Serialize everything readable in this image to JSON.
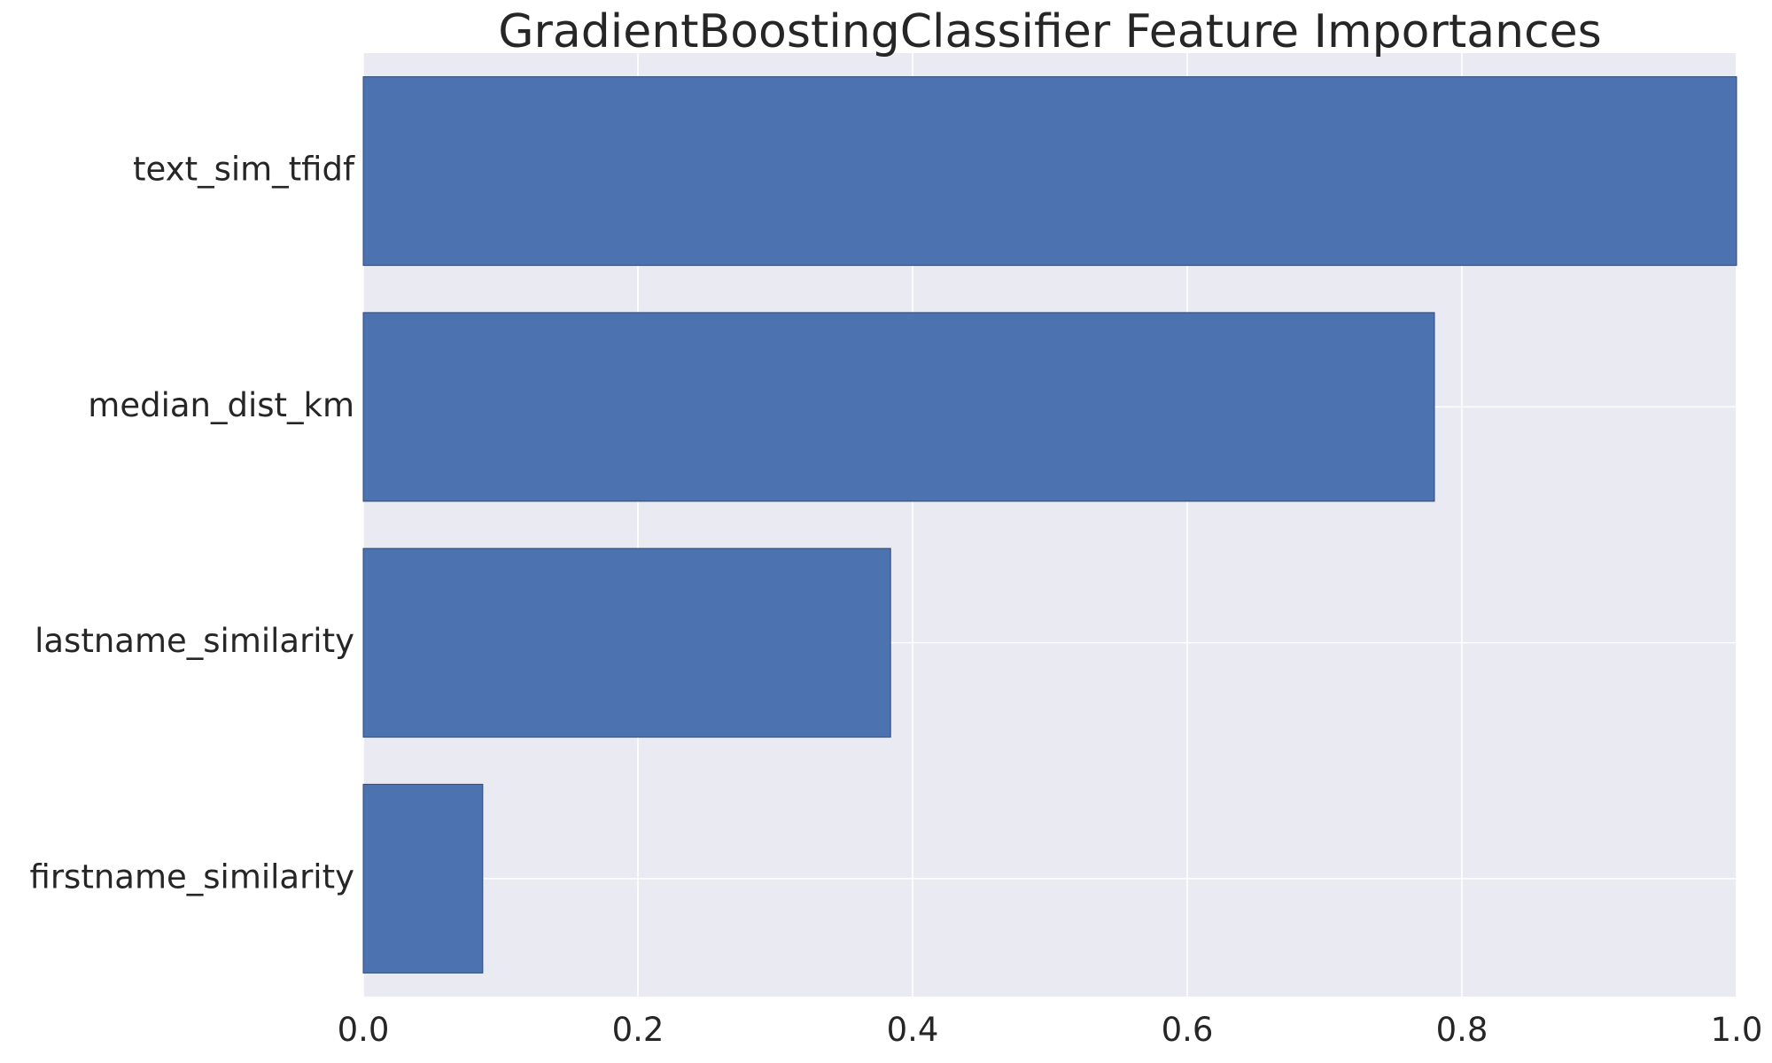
{
  "chart_data": {
    "type": "bar",
    "orientation": "horizontal",
    "title": "GradientBoostingClassifier Feature Importances",
    "xlabel": "",
    "ylabel": "",
    "categories": [
      "text_sim_tfidf",
      "median_dist_km",
      "lastname_similarity",
      "firstname_similarity"
    ],
    "values": [
      1.0,
      0.78,
      0.384,
      0.087
    ],
    "xlim": [
      0,
      1.0
    ],
    "xticks": [
      0.0,
      0.2,
      0.4,
      0.6,
      0.8,
      1.0
    ],
    "xtick_labels": [
      "0.0",
      "0.2",
      "0.4",
      "0.6",
      "0.8",
      "1.0"
    ],
    "grid": true,
    "colors": {
      "bar": "#4c72b0",
      "bar_edge": "#2e4a78",
      "background": "#eaeaf2",
      "grid": "#ffffff"
    }
  }
}
